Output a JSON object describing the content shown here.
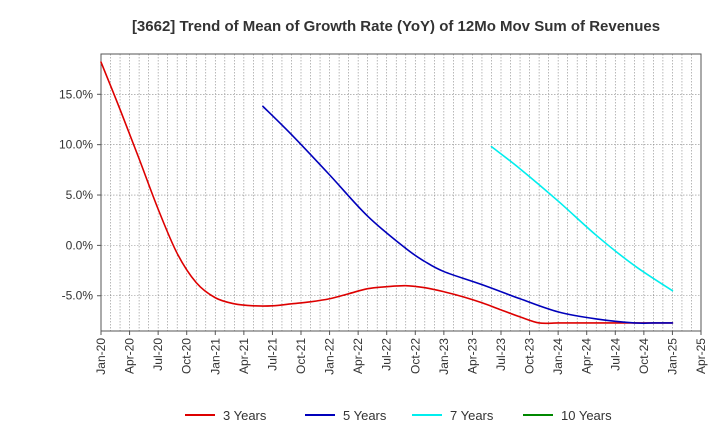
{
  "chart_data": {
    "type": "line",
    "title": "[3662]  Trend of Mean of Growth Rate (YoY) of 12Mo Mov Sum of Revenues",
    "xlabel": "",
    "ylabel": "",
    "ylim": [
      -8.5,
      19.0
    ],
    "grid": true,
    "legend_position": "bottom",
    "x_ticks": [
      "Jan-20",
      "Apr-20",
      "Jul-20",
      "Oct-20",
      "Jan-21",
      "Apr-21",
      "Jul-21",
      "Oct-21",
      "Jan-22",
      "Apr-22",
      "Jul-22",
      "Oct-22",
      "Jan-23",
      "Apr-23",
      "Jul-23",
      "Oct-23",
      "Jan-24",
      "Apr-24",
      "Jul-24",
      "Oct-24",
      "Jan-25",
      "Apr-25"
    ],
    "y_ticks": [
      15,
      10,
      5,
      0,
      -5
    ],
    "y_tick_labels": [
      "15.0%",
      "10.0%",
      "5.0%",
      "0.0%",
      "-5.0%"
    ],
    "series": [
      {
        "name": "3 Years",
        "color": "#dd0000",
        "x": [
          0,
          2,
          4,
          6,
          8,
          10,
          12,
          14,
          16,
          18,
          20,
          22,
          24,
          26,
          28,
          30,
          32,
          34,
          36,
          38,
          40,
          42,
          44,
          46,
          48,
          50,
          52,
          54,
          56,
          58,
          60
        ],
        "values": [
          18.2,
          13.5,
          8.6,
          3.6,
          -0.8,
          -3.7,
          -5.2,
          -5.8,
          -6.0,
          -6.0,
          -5.8,
          -5.6,
          -5.3,
          -4.8,
          -4.3,
          -4.1,
          -4.0,
          -4.2,
          -4.6,
          -5.1,
          -5.7,
          -6.4,
          -7.1,
          -7.7,
          -7.7,
          -7.7,
          -7.7,
          -7.7,
          -7.7,
          -7.7,
          -7.7
        ]
      },
      {
        "name": "5 Years",
        "color": "#0000bb",
        "x": [
          17,
          20,
          24,
          28,
          32,
          34,
          36,
          40,
          44,
          48,
          52,
          56,
          58,
          60
        ],
        "values": [
          13.8,
          11.0,
          7.0,
          2.9,
          -0.3,
          -1.6,
          -2.6,
          -3.9,
          -5.3,
          -6.6,
          -7.3,
          -7.7,
          -7.7,
          -7.7
        ]
      },
      {
        "name": "7 Years",
        "color": "#00eeee",
        "x": [
          41,
          44,
          48,
          52,
          56,
          60
        ],
        "values": [
          9.8,
          7.6,
          4.4,
          1.0,
          -2.0,
          -4.5
        ]
      },
      {
        "name": "10 Years",
        "color": "#008800",
        "x": [],
        "values": []
      }
    ]
  }
}
